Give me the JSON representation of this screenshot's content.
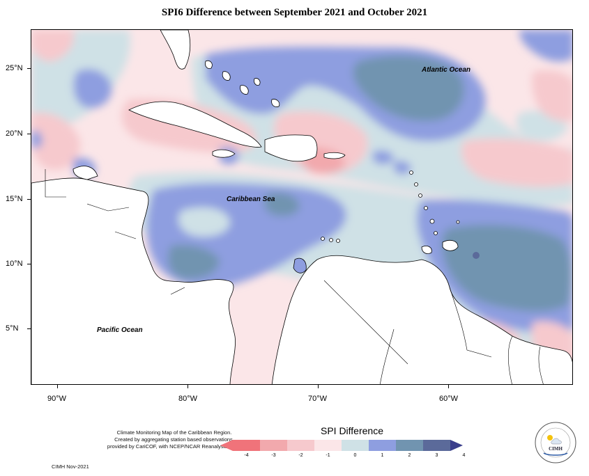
{
  "title": "SPI6 Difference between September 2021 and October 2021",
  "map_labels": {
    "atlantic": "Atlantic Ocean",
    "caribbean": "Caribbean Sea",
    "pacific": "Pacific Ocean"
  },
  "axes": {
    "lat_labels": [
      "25°N",
      "20°N",
      "15°N",
      "10°N",
      "5°N"
    ],
    "lon_labels": [
      "90°W",
      "80°W",
      "70°W",
      "60°W"
    ]
  },
  "legend": {
    "title": "SPI Difference",
    "ticks": [
      "-4",
      "-3",
      "-2",
      "-1",
      "0",
      "1",
      "2",
      "3",
      "4"
    ],
    "colors": [
      "#f0737a",
      "#f2a9ad",
      "#f6c9cd",
      "#fbe6e8",
      "#cfe1e6",
      "#8e9ee0",
      "#7194b0",
      "#5b6a9a",
      "#3b3f8c"
    ]
  },
  "credits": {
    "line1": "Climate Monitoring Map of the Caribbean Region.",
    "line2": "Created by aggregating station based observations,",
    "line3": "provided by CariCOF, with NCEP/NCAR Reanalysis Data.",
    "stamp": "CIMH Nov-2021"
  },
  "logo": {
    "text": "CIMH"
  }
}
